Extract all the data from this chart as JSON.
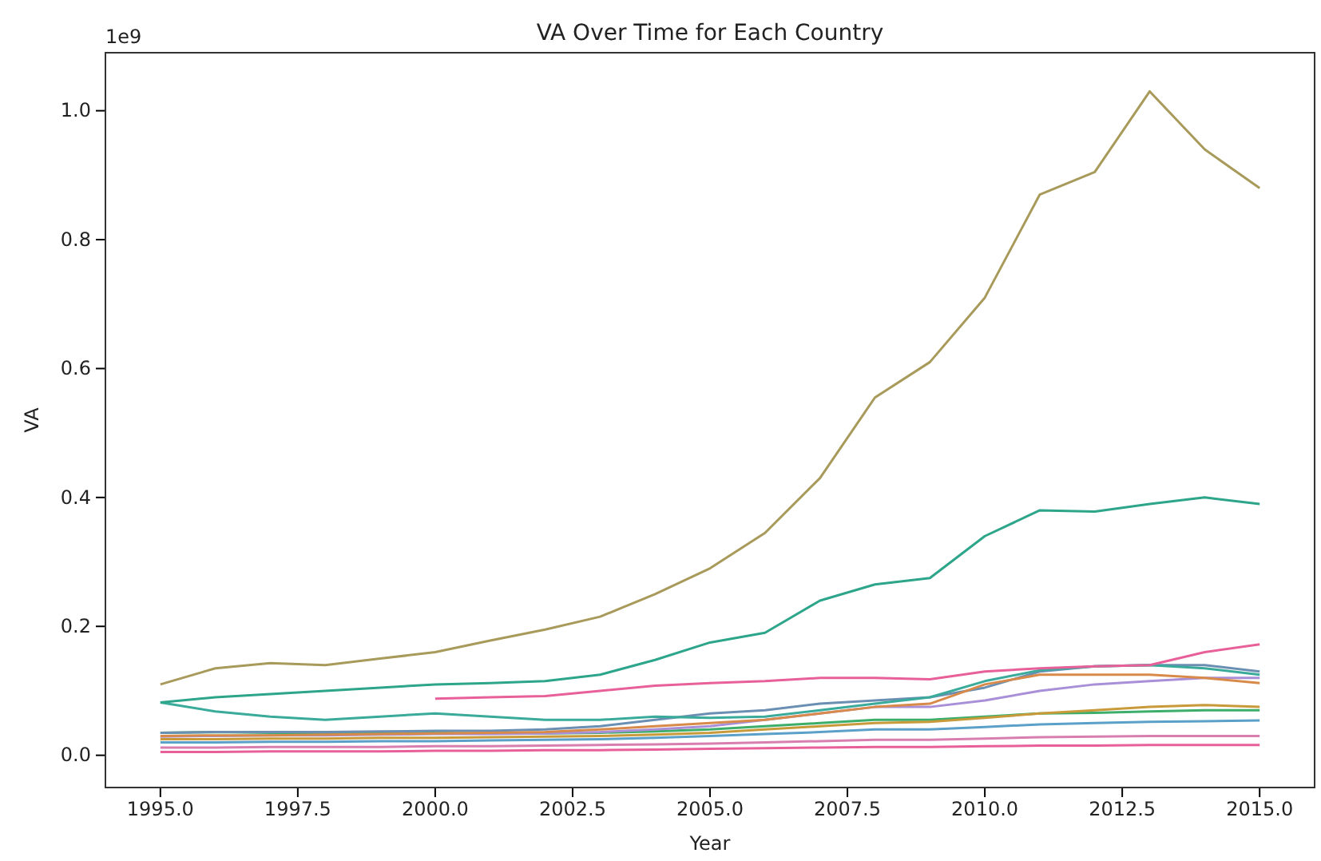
{
  "chart_data": {
    "type": "line",
    "title": "VA Over Time for Each Country",
    "xlabel": "Year",
    "ylabel": "VA",
    "annotations": [
      "1e9"
    ],
    "x": [
      1995,
      1996,
      1997,
      1998,
      1999,
      2000,
      2001,
      2002,
      2003,
      2004,
      2005,
      2006,
      2007,
      2008,
      2009,
      2010,
      2011,
      2012,
      2013,
      2014,
      2015
    ],
    "xlim": [
      1994,
      2016
    ],
    "ylim": [
      -0.05,
      1.09
    ],
    "xticks": [
      {
        "value": 1995,
        "label": "1995.0"
      },
      {
        "value": 1997.5,
        "label": "1997.5"
      },
      {
        "value": 2000,
        "label": "2000.0"
      },
      {
        "value": 2002.5,
        "label": "2002.5"
      },
      {
        "value": 2005,
        "label": "2005.0"
      },
      {
        "value": 2007.5,
        "label": "2007.5"
      },
      {
        "value": 2010,
        "label": "2010.0"
      },
      {
        "value": 2012.5,
        "label": "2012.5"
      },
      {
        "value": 2015,
        "label": "2015.0"
      }
    ],
    "yticks": [
      {
        "value": 0,
        "label": "0.0"
      },
      {
        "value": 0.2,
        "label": "0.2"
      },
      {
        "value": 0.4,
        "label": "0.4"
      },
      {
        "value": 0.6,
        "label": "0.6"
      },
      {
        "value": 0.8,
        "label": "0.8"
      },
      {
        "value": 1,
        "label": "1.0"
      }
    ],
    "grid": false,
    "line_style": "solid",
    "marker": "none",
    "series": [
      {
        "color": "#e8609a",
        "values": [
          0.005,
          0.005,
          0.006,
          0.006,
          0.006,
          0.007,
          0.007,
          0.008,
          0.008,
          0.009,
          0.01,
          0.011,
          0.012,
          0.013,
          0.013,
          0.014,
          0.015,
          0.015,
          0.016,
          0.016,
          0.016
        ]
      },
      {
        "color": "#d87fb0",
        "values": [
          0.012,
          0.012,
          0.013,
          0.013,
          0.013,
          0.014,
          0.014,
          0.015,
          0.016,
          0.017,
          0.018,
          0.02,
          0.022,
          0.024,
          0.024,
          0.026,
          0.028,
          0.029,
          0.03,
          0.03,
          0.03
        ]
      },
      {
        "color": "#5aa0c8",
        "values": [
          0.02,
          0.02,
          0.021,
          0.021,
          0.022,
          0.022,
          0.023,
          0.024,
          0.025,
          0.027,
          0.03,
          0.033,
          0.036,
          0.04,
          0.04,
          0.044,
          0.048,
          0.05,
          0.052,
          0.053,
          0.054
        ]
      },
      {
        "color": "#3cae6a",
        "values": [
          0.035,
          0.036,
          0.035,
          0.034,
          0.034,
          0.035,
          0.034,
          0.034,
          0.035,
          0.037,
          0.04,
          0.045,
          0.05,
          0.055,
          0.055,
          0.06,
          0.065,
          0.066,
          0.068,
          0.07,
          0.07
        ]
      },
      {
        "color": "#c89a3a",
        "values": [
          0.025,
          0.025,
          0.026,
          0.026,
          0.027,
          0.027,
          0.028,
          0.029,
          0.03,
          0.032,
          0.035,
          0.04,
          0.045,
          0.05,
          0.052,
          0.058,
          0.065,
          0.07,
          0.075,
          0.078,
          0.075
        ]
      },
      {
        "color": "#a98fd8",
        "values": [
          0.029,
          0.03,
          0.031,
          0.031,
          0.032,
          0.033,
          0.033,
          0.034,
          0.036,
          0.04,
          0.045,
          0.055,
          0.065,
          0.075,
          0.075,
          0.085,
          0.1,
          0.11,
          0.115,
          0.12,
          0.12
        ]
      },
      {
        "color": "#6a8fb3",
        "values": [
          0.035,
          0.036,
          0.036,
          0.036,
          0.037,
          0.038,
          0.038,
          0.04,
          0.045,
          0.055,
          0.065,
          0.07,
          0.08,
          0.085,
          0.09,
          0.105,
          0.13,
          0.138,
          0.14,
          0.14,
          0.13
        ]
      },
      {
        "color": "#d88a4a",
        "values": [
          0.03,
          0.031,
          0.031,
          0.032,
          0.033,
          0.034,
          0.035,
          0.036,
          0.04,
          0.045,
          0.05,
          0.055,
          0.065,
          0.075,
          0.08,
          0.11,
          0.125,
          0.125,
          0.125,
          0.12,
          0.112
        ]
      },
      {
        "color": "#3aab9a",
        "values": [
          0.082,
          0.068,
          0.06,
          0.055,
          0.06,
          0.065,
          0.06,
          0.055,
          0.055,
          0.06,
          0.058,
          0.06,
          0.07,
          0.08,
          0.09,
          0.115,
          0.132,
          0.138,
          0.14,
          0.135,
          0.125
        ]
      },
      {
        "color": "#e8609a",
        "x": [
          2000,
          2001,
          2002,
          2003,
          2004,
          2005,
          2006,
          2007,
          2008,
          2009,
          2010,
          2011,
          2012,
          2013,
          2014,
          2015
        ],
        "values": [
          0.088,
          0.09,
          0.092,
          0.1,
          0.108,
          0.112,
          0.115,
          0.12,
          0.12,
          0.118,
          0.13,
          0.135,
          0.138,
          0.14,
          0.16,
          0.172
        ]
      },
      {
        "color": "#2ca58a",
        "values": [
          0.082,
          0.09,
          0.095,
          0.1,
          0.105,
          0.11,
          0.112,
          0.115,
          0.125,
          0.148,
          0.175,
          0.19,
          0.24,
          0.265,
          0.275,
          0.34,
          0.38,
          0.378,
          0.39,
          0.4,
          0.39
        ]
      },
      {
        "color": "#a89a5a",
        "values": [
          0.11,
          0.135,
          0.143,
          0.14,
          0.15,
          0.16,
          0.178,
          0.195,
          0.215,
          0.25,
          0.29,
          0.345,
          0.43,
          0.555,
          0.61,
          0.71,
          0.87,
          0.905,
          1.03,
          0.94,
          0.88
        ]
      }
    ]
  }
}
